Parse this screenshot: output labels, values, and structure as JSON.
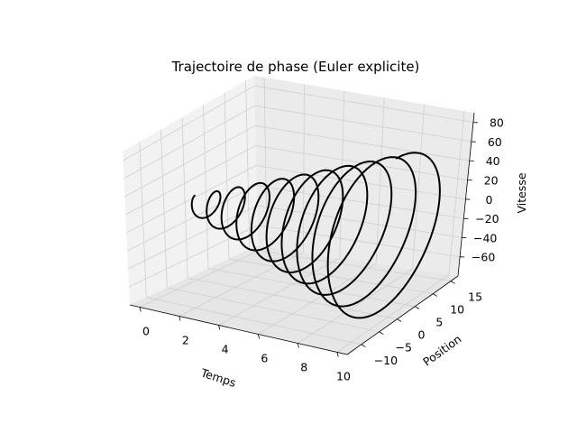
{
  "chart_data": {
    "type": "line",
    "projection": "3d",
    "title": "Trajectoire de phase (Euler explicite)",
    "xlabel": "Temps",
    "ylabel": "Position",
    "zlabel": "Vitesse",
    "xlim": [
      -0.5,
      10.5
    ],
    "ylim": [
      -14,
      17
    ],
    "zlim": [
      -80,
      90
    ],
    "x_ticks": [
      "0",
      "2",
      "4",
      "6",
      "8",
      "10"
    ],
    "y_ticks": [
      "−10",
      "−5",
      "0",
      "5",
      "10",
      "15"
    ],
    "z_ticks": [
      "−60",
      "−40",
      "−20",
      "0",
      "20",
      "40",
      "60",
      "80"
    ],
    "grid": true,
    "series": [
      {
        "color": "#000000",
        "model": "explicit Euler, harmonic oscillator, amplitude growing with time",
        "t_start": 0,
        "t_end": 10,
        "turns": 10,
        "position_amplitude_start": 1.5,
        "position_amplitude_end": 14,
        "velocity_amplitude_start": 9,
        "velocity_amplitude_end": 80,
        "end_point": {
          "t": 10,
          "position": 0,
          "velocity": 20
        }
      }
    ]
  }
}
